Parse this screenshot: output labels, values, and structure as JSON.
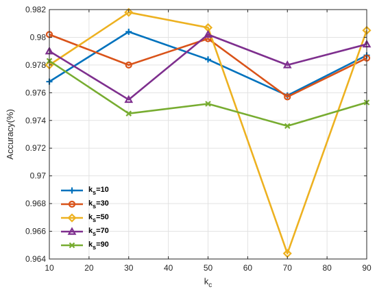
{
  "chart_data": {
    "type": "line",
    "title": "",
    "xlabel": {
      "base": "k",
      "sub": "c"
    },
    "ylabel": "Accuracy(%)",
    "x": [
      10,
      30,
      50,
      70,
      90
    ],
    "xlim": [
      10,
      90
    ],
    "ylim": [
      0.964,
      0.982
    ],
    "xticks": [
      "10",
      "20",
      "30",
      "40",
      "50",
      "60",
      "70",
      "80",
      "90"
    ],
    "yticks": [
      "0.964",
      "0.966",
      "0.968",
      "0.97",
      "0.972",
      "0.974",
      "0.976",
      "0.978",
      "0.98",
      "0.982"
    ],
    "grid": true,
    "legend_position": "lower-left",
    "series": [
      {
        "name": {
          "base": "k",
          "sub": "s",
          "suffix": "=10"
        },
        "color": "#0072BD",
        "marker": "plus",
        "values": [
          0.9768,
          0.9804,
          0.9784,
          0.9758,
          0.9787
        ]
      },
      {
        "name": {
          "base": "k",
          "sub": "s",
          "suffix": "=30"
        },
        "color": "#D95319",
        "marker": "circle",
        "values": [
          0.9802,
          0.978,
          0.9799,
          0.9757,
          0.9785
        ]
      },
      {
        "name": {
          "base": "k",
          "sub": "s",
          "suffix": "=50"
        },
        "color": "#EDB120",
        "marker": "diamond",
        "values": [
          0.978,
          0.9818,
          0.9807,
          0.9644,
          0.9805
        ]
      },
      {
        "name": {
          "base": "k",
          "sub": "s",
          "suffix": "=70"
        },
        "color": "#7E2F8E",
        "marker": "triangle",
        "values": [
          0.979,
          0.9755,
          0.9802,
          0.978,
          0.9795
        ]
      },
      {
        "name": {
          "base": "k",
          "sub": "s",
          "suffix": "=90"
        },
        "color": "#77AC30",
        "marker": "x",
        "values": [
          0.9783,
          0.9745,
          0.9752,
          0.9736,
          0.9753
        ]
      }
    ]
  }
}
